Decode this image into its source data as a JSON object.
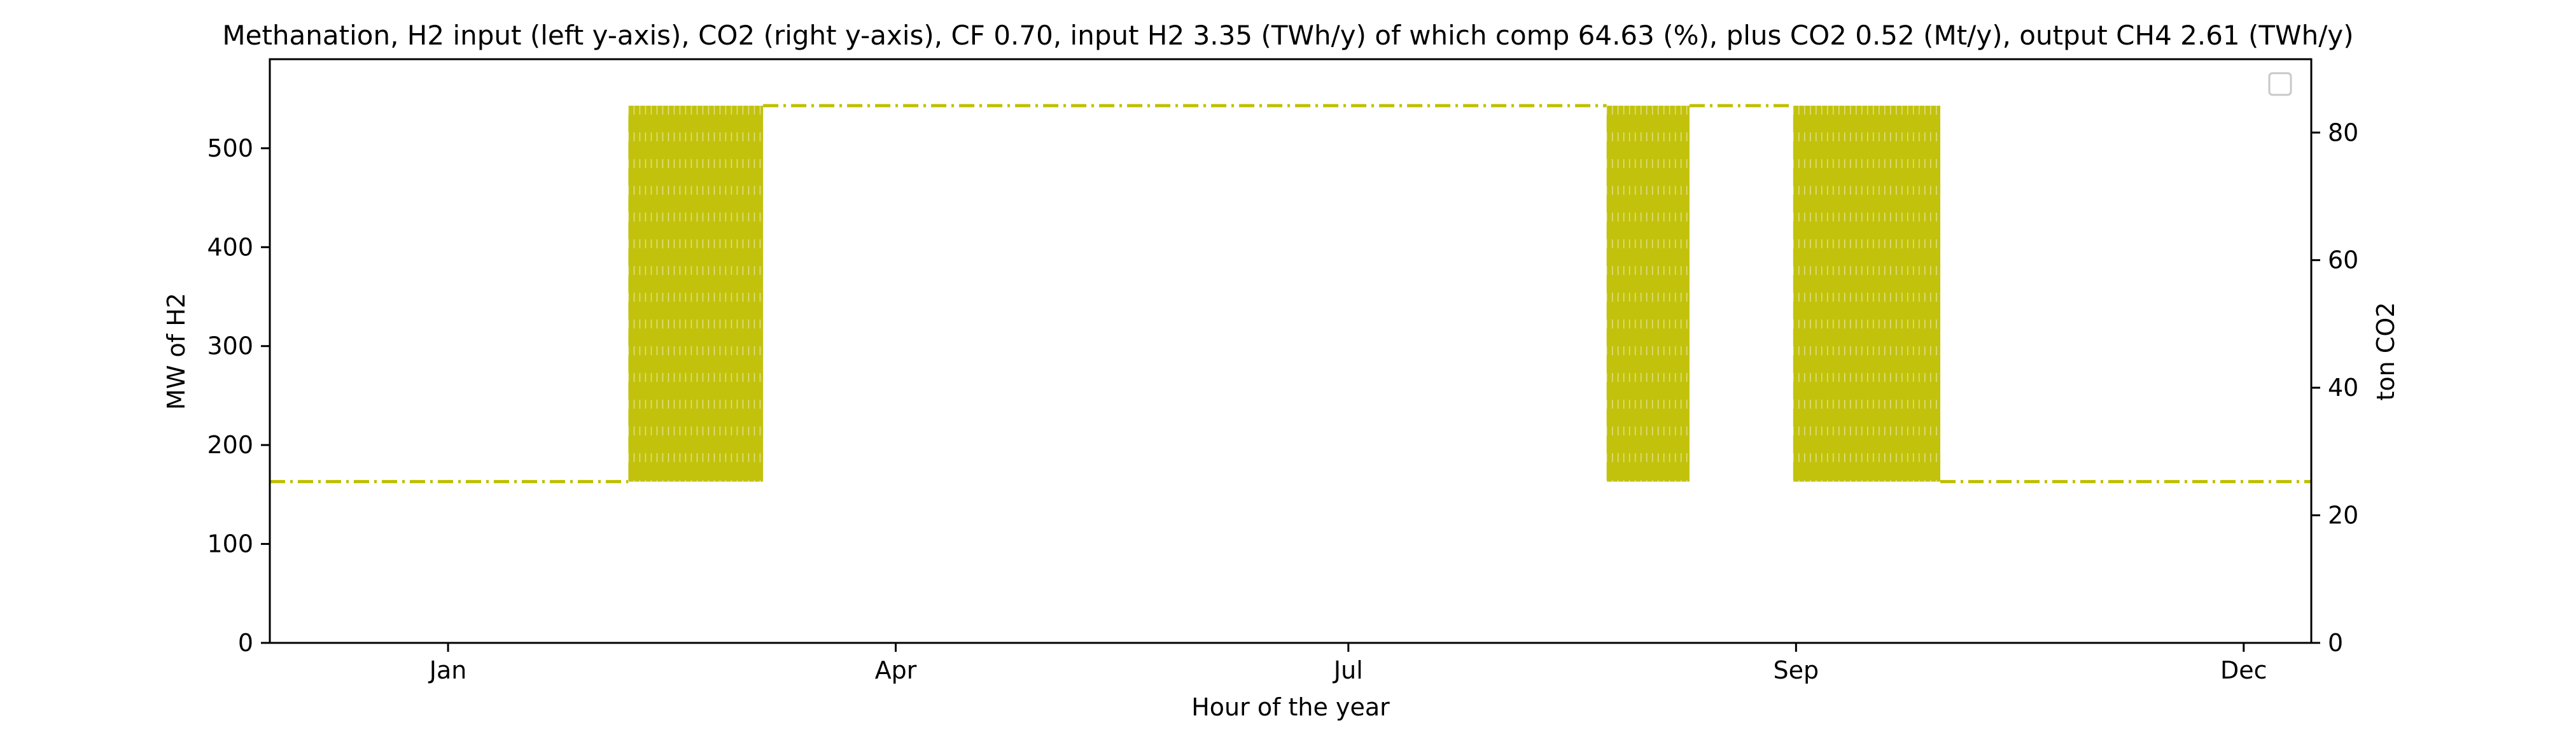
{
  "chart_data": {
    "type": "line",
    "title": "Methanation, H2 input (left y-axis), CO2 (right y-axis), CF 0.70, input H2 3.35 (TWh/y) of which comp 64.63 (%), plus CO2 0.52 (Mt/y), output CH4 2.61 (TWh/y)",
    "xlabel": "Hour of the year",
    "ylabel_left": "MW of H2",
    "ylabel_right": "ton CO2",
    "x_ticks": [
      {
        "label": "Jan",
        "hour": 360
      },
      {
        "label": "Apr",
        "hour": 2520
      },
      {
        "label": "Jul",
        "hour": 4704
      },
      {
        "label": "Sep",
        "hour": 6864
      },
      {
        "label": "Dec",
        "hour": 9024
      }
    ],
    "xlim": [
      -500,
      9350
    ],
    "ylim_left": [
      0,
      590
    ],
    "ylim_right": [
      0,
      91.5
    ],
    "y_ticks_left": [
      0,
      100,
      200,
      300,
      400,
      500
    ],
    "y_ticks_right": [
      0,
      20,
      40,
      60,
      80
    ],
    "grid": false,
    "legend": "top-right (empty)",
    "series_color": "#bfbf00",
    "line_style": "dash-dot",
    "series": [
      {
        "axis": "left",
        "min_level": 163,
        "max_level": 543,
        "segments": [
          {
            "x": [
              -500,
              1230
            ],
            "y": [
              163,
              163
            ]
          },
          {
            "x": [
              1230,
              1880
            ],
            "y": "oscillating 163-543"
          },
          {
            "x": [
              1880,
              5950
            ],
            "y": [
              543,
              543
            ]
          },
          {
            "x": [
              5950,
              6350
            ],
            "y": "oscillating 163-543"
          },
          {
            "x": [
              6350,
              6850
            ],
            "y": [
              543,
              543
            ]
          },
          {
            "x": [
              6850,
              7560
            ],
            "y": "oscillating 163-543"
          },
          {
            "x": [
              7560,
              9350
            ],
            "y": [
              163,
              163
            ]
          }
        ]
      }
    ]
  }
}
